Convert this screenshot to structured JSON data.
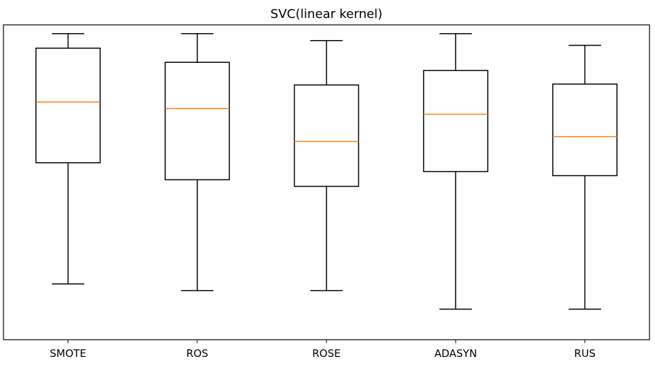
{
  "chart_data": {
    "type": "box",
    "title": "SVC(linear kernel)",
    "xlabel": "",
    "ylabel": "",
    "y_axis_visible": false,
    "grid": false,
    "categories": [
      "SMOTE",
      "ROS",
      "ROSE",
      "ADASYN",
      "RUS"
    ],
    "boxes": [
      {
        "label": "SMOTE",
        "whisker_low": 0.177,
        "q1": 0.562,
        "median": 0.755,
        "q3": 0.926,
        "whisker_high": 0.972
      },
      {
        "label": "ROS",
        "whisker_low": 0.156,
        "q1": 0.508,
        "median": 0.734,
        "q3": 0.881,
        "whisker_high": 0.972
      },
      {
        "label": "ROSE",
        "whisker_low": 0.156,
        "q1": 0.487,
        "median": 0.63,
        "q3": 0.809,
        "whisker_high": 0.95
      },
      {
        "label": "ADASYN",
        "whisker_low": 0.097,
        "q1": 0.534,
        "median": 0.716,
        "q3": 0.855,
        "whisker_high": 0.972
      },
      {
        "label": "RUS",
        "whisker_low": 0.097,
        "q1": 0.521,
        "median": 0.645,
        "q3": 0.812,
        "whisker_high": 0.935
      }
    ],
    "colors": {
      "box": "#000000",
      "median": "#ff7f0e",
      "frame": "#000000",
      "background": "#ffffff"
    }
  }
}
